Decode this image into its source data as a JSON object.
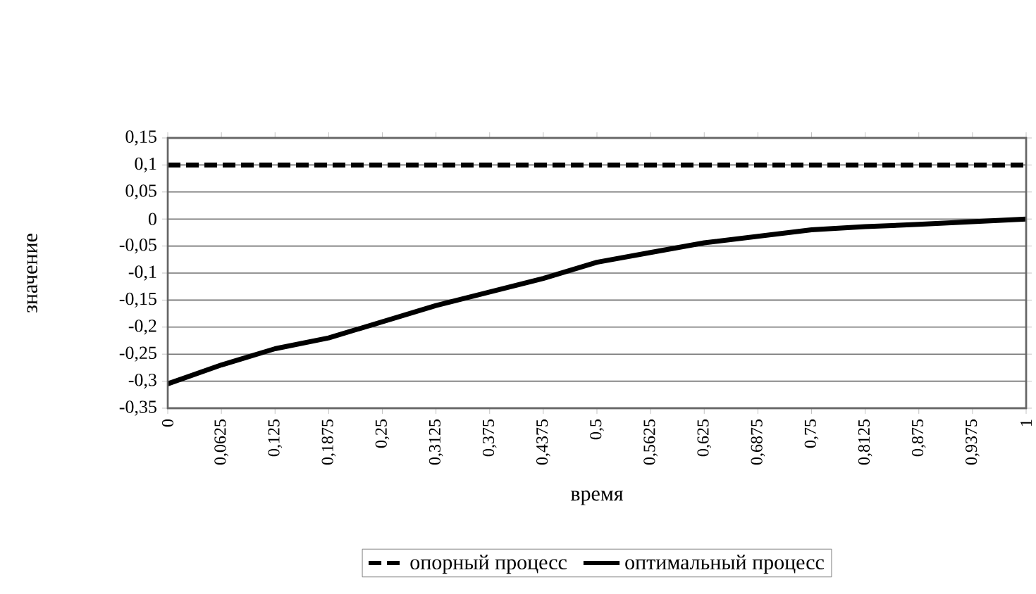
{
  "chart_data": {
    "type": "line",
    "xlabel": "время",
    "ylabel": "значение",
    "x": [
      0,
      0.0625,
      0.125,
      0.1875,
      0.25,
      0.3125,
      0.375,
      0.4375,
      0.5,
      0.5625,
      0.625,
      0.6875,
      0.75,
      0.8125,
      0.875,
      0.9375,
      1
    ],
    "series": [
      {
        "name": "опорный процесс",
        "color": "#000000",
        "line_style": "dashed",
        "values": [
          0.1,
          0.1,
          0.1,
          0.1,
          0.1,
          0.1,
          0.1,
          0.1,
          0.1,
          0.1,
          0.1,
          0.1,
          0.1,
          0.1,
          0.1,
          0.1,
          0.1
        ]
      },
      {
        "name": "оптимальный процесс",
        "color": "#000000",
        "line_style": "solid",
        "values": [
          -0.305,
          -0.27,
          -0.24,
          -0.22,
          -0.19,
          -0.16,
          -0.135,
          -0.11,
          -0.08,
          -0.062,
          -0.044,
          -0.032,
          -0.02,
          -0.014,
          -0.01,
          -0.005,
          0
        ]
      }
    ],
    "xlim": [
      0,
      1
    ],
    "xticks": [
      {
        "value": 0,
        "label": "0"
      },
      {
        "value": 0.0625,
        "label": "0,0625"
      },
      {
        "value": 0.125,
        "label": "0,125"
      },
      {
        "value": 0.1875,
        "label": "0,1875"
      },
      {
        "value": 0.25,
        "label": "0,25"
      },
      {
        "value": 0.3125,
        "label": "0,3125"
      },
      {
        "value": 0.375,
        "label": "0,375"
      },
      {
        "value": 0.4375,
        "label": "0,4375"
      },
      {
        "value": 0.5,
        "label": "0,5"
      },
      {
        "value": 0.5625,
        "label": "0,5625"
      },
      {
        "value": 0.625,
        "label": "0,625"
      },
      {
        "value": 0.6875,
        "label": "0,6875"
      },
      {
        "value": 0.75,
        "label": "0,75"
      },
      {
        "value": 0.8125,
        "label": "0,8125"
      },
      {
        "value": 0.875,
        "label": "0,875"
      },
      {
        "value": 0.9375,
        "label": "0,9375"
      },
      {
        "value": 1,
        "label": "1"
      }
    ],
    "ylim": [
      -0.35,
      0.15
    ],
    "yticks": [
      {
        "value": 0.15,
        "label": "0,15"
      },
      {
        "value": 0.1,
        "label": "0,1"
      },
      {
        "value": 0.05,
        "label": "0,05"
      },
      0,
      {
        "value": -0.05,
        "label": "-0,05"
      },
      {
        "value": -0.1,
        "label": "-0,1"
      },
      {
        "value": -0.15,
        "label": "-0,15"
      },
      {
        "value": -0.2,
        "label": "-0,2"
      },
      {
        "value": -0.25,
        "label": "-0,25"
      },
      {
        "value": -0.3,
        "label": "-0,3"
      },
      {
        "value": -0.35,
        "label": "-0,35"
      }
    ],
    "grid": "y",
    "legend": "bottom",
    "marker": "none"
  }
}
